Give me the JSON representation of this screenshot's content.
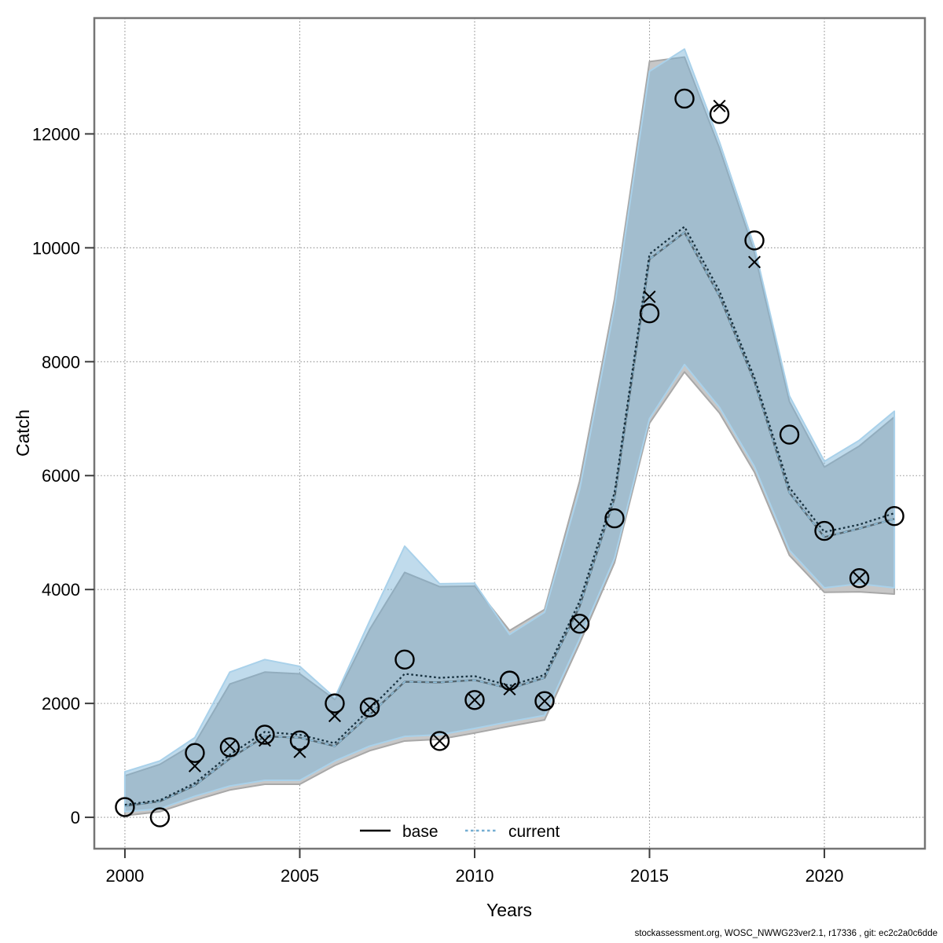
{
  "page": {
    "background": "#ffffff"
  },
  "footer": {
    "credit": "stockassessment.org, WOSC_NWWG23ver2.1, r17336 , git: ec2c2a0c6dde"
  },
  "chart_data": {
    "type": "line",
    "title": "",
    "xlabel": "Years",
    "ylabel": "Catch",
    "grid": "dotted",
    "legend_position": "bottom-center-inside",
    "xlim": [
      1999.125,
      2022.875
    ],
    "ylim": [
      -551,
      14034
    ],
    "x_ticks": [
      2000,
      2005,
      2010,
      2015,
      2020
    ],
    "y_ticks": [
      0,
      2000,
      4000,
      6000,
      8000,
      10000,
      12000
    ],
    "years": [
      2000,
      2001,
      2002,
      2003,
      2004,
      2005,
      2006,
      2007,
      2008,
      2009,
      2010,
      2011,
      2012,
      2013,
      2014,
      2015,
      2016,
      2017,
      2018,
      2019,
      2020,
      2021,
      2022
    ],
    "bands": [
      {
        "name": "base-confidence-band",
        "fill": "#c7c7c7",
        "edge": "#a8a8a8",
        "opacity": 1,
        "lower": [
          30,
          100,
          300,
          480,
          580,
          580,
          910,
          1170,
          1340,
          1370,
          1480,
          1600,
          1710,
          3050,
          4470,
          6920,
          7820,
          7100,
          6060,
          4600,
          3950,
          3960,
          3920
        ],
        "upper": [
          730,
          930,
          1300,
          2340,
          2550,
          2520,
          2070,
          3300,
          4300,
          4050,
          4060,
          3280,
          3650,
          5900,
          9100,
          13270,
          13350,
          11750,
          9920,
          7300,
          6150,
          6520,
          7030
        ]
      },
      {
        "name": "current-confidence-band",
        "fill": "rgba(122,179,215,0.47)",
        "edge": "#a9d1ea",
        "opacity": 1,
        "lower": [
          100,
          150,
          370,
          550,
          650,
          650,
          990,
          1250,
          1420,
          1450,
          1560,
          1680,
          1790,
          3130,
          4550,
          7000,
          7950,
          7200,
          6160,
          4690,
          4030,
          4100,
          4030
        ],
        "upper": [
          800,
          990,
          1400,
          2550,
          2770,
          2650,
          2100,
          3450,
          4760,
          4100,
          4110,
          3210,
          3600,
          5750,
          8960,
          13100,
          13490,
          11860,
          10020,
          7400,
          6250,
          6620,
          7130
        ]
      }
    ],
    "series": [
      {
        "name": "base",
        "kind": "line",
        "style": "solid",
        "color": "#53646d",
        "accent": "#8fc0dd",
        "values": [
          200,
          280,
          560,
          1030,
          1420,
          1400,
          1250,
          1800,
          2380,
          2370,
          2410,
          2260,
          2450,
          3700,
          5600,
          9800,
          10270,
          9150,
          7650,
          5700,
          4920,
          5070,
          5240
        ]
      },
      {
        "name": "current",
        "kind": "line",
        "style": "dotted",
        "color": "#17313f",
        "values": [
          220,
          300,
          600,
          1100,
          1500,
          1450,
          1300,
          1900,
          2520,
          2450,
          2480,
          2310,
          2500,
          3790,
          5700,
          9890,
          10370,
          9240,
          7720,
          5790,
          5010,
          5140,
          5340
        ]
      },
      {
        "name": "observed-catch-circles",
        "kind": "scatter",
        "marker": "circle",
        "color": "#000000",
        "values": [
          180,
          0,
          1130,
          1230,
          1450,
          1350,
          2000,
          1930,
          2770,
          1340,
          2060,
          2400,
          2040,
          3400,
          5250,
          8850,
          12620,
          12350,
          10130,
          6720,
          5030,
          4200,
          5290
        ]
      },
      {
        "name": "observed-catch-crosses",
        "kind": "scatter",
        "marker": "x",
        "color": "#000000",
        "values": [
          null,
          null,
          900,
          1250,
          1350,
          1150,
          1780,
          1930,
          null,
          1340,
          2060,
          2250,
          2040,
          3400,
          null,
          9140,
          null,
          12490,
          9750,
          null,
          null,
          4200,
          null
        ]
      }
    ],
    "legend": {
      "items": [
        {
          "label": "base",
          "line": "solid",
          "color": "#000000"
        },
        {
          "label": "current",
          "line": "dotted",
          "color": "#74add1"
        }
      ]
    },
    "colors": {
      "grid": "#8f8f8f",
      "plot_border": "#757575",
      "tick": "#3c3c3c"
    }
  }
}
